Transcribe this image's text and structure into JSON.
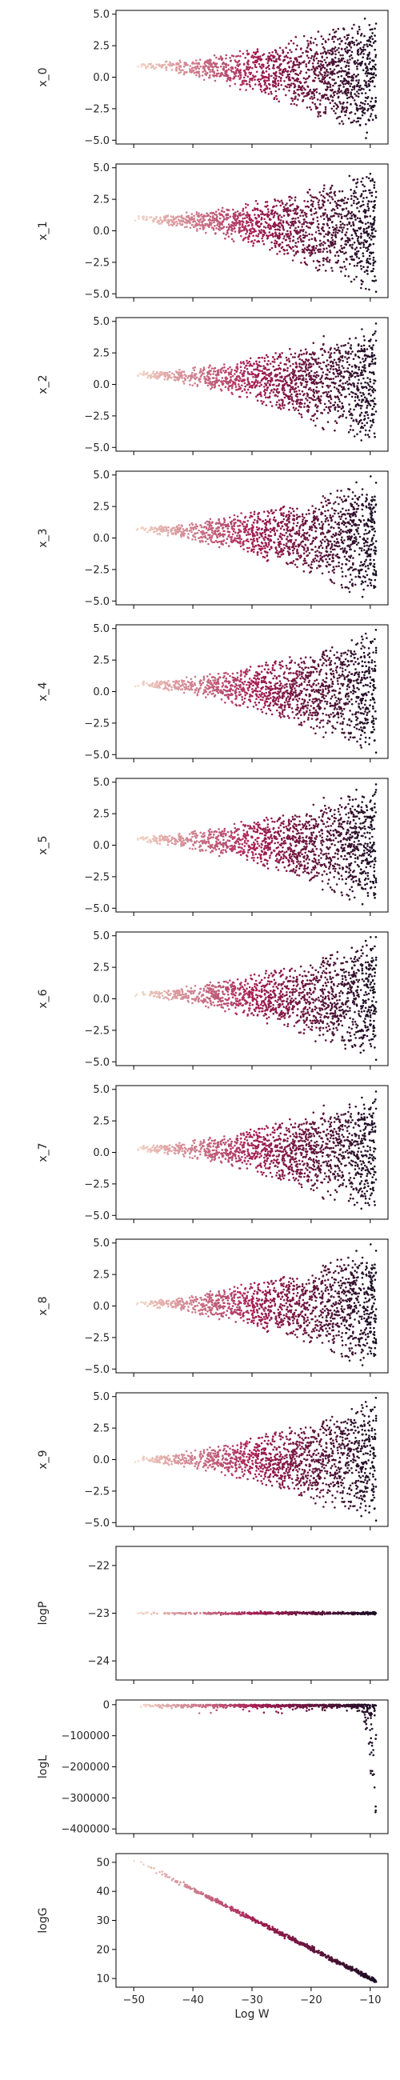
{
  "figure": {
    "shared_xlabel": "Log W"
  },
  "colors": {
    "axis": "#000000",
    "text": "#262626",
    "cmap_dark": "#1a0d25",
    "cmap_mid": "#a51d52",
    "cmap_light": "#f6ddc8"
  },
  "chart_data": [
    {
      "type": "scatter",
      "ylabel": "x_0",
      "ylim": [
        -5.3,
        5.3
      ],
      "yticks": [
        5.0,
        2.5,
        0.0,
        -2.5,
        -5.0
      ],
      "ytick_labels": [
        "5.0",
        "2.5",
        "0.0",
        "−2.5",
        "−5.0"
      ],
      "xlim": [
        -53,
        -7
      ],
      "xticks": [
        -50,
        -40,
        -30,
        -20,
        -10
      ],
      "shape": "funnel",
      "start": 1.0,
      "end_range": [
        -5.0,
        5.0
      ]
    },
    {
      "type": "scatter",
      "ylabel": "x_1",
      "ylim": [
        -5.3,
        5.3
      ],
      "yticks": [
        5.0,
        2.5,
        0.0,
        -2.5,
        -5.0
      ],
      "ytick_labels": [
        "5.0",
        "2.5",
        "0.0",
        "−2.5",
        "−5.0"
      ],
      "xlim": [
        -53,
        -7
      ],
      "xticks": [
        -50,
        -40,
        -30,
        -20,
        -10
      ],
      "shape": "funnel",
      "start": 1.0,
      "end_range": [
        -5.0,
        5.0
      ]
    },
    {
      "type": "scatter",
      "ylabel": "x_2",
      "ylim": [
        -5.3,
        5.3
      ],
      "yticks": [
        5.0,
        2.5,
        0.0,
        -2.5,
        -5.0
      ],
      "ytick_labels": [
        "5.0",
        "2.5",
        "0.0",
        "−2.5",
        "−5.0"
      ],
      "xlim": [
        -53,
        -7
      ],
      "xticks": [
        -50,
        -40,
        -30,
        -20,
        -10
      ],
      "shape": "funnel",
      "start": 0.8,
      "end_range": [
        -5.0,
        5.0
      ]
    },
    {
      "type": "scatter",
      "ylabel": "x_3",
      "ylim": [
        -5.3,
        5.3
      ],
      "yticks": [
        5.0,
        2.5,
        0.0,
        -2.5,
        -5.0
      ],
      "ytick_labels": [
        "5.0",
        "2.5",
        "0.0",
        "−2.5",
        "−5.0"
      ],
      "xlim": [
        -53,
        -7
      ],
      "xticks": [
        -50,
        -40,
        -30,
        -20,
        -10
      ],
      "shape": "funnel",
      "start": 0.7,
      "end_range": [
        -5.0,
        5.0
      ]
    },
    {
      "type": "scatter",
      "ylabel": "x_4",
      "ylim": [
        -5.3,
        5.3
      ],
      "yticks": [
        5.0,
        2.5,
        0.0,
        -2.5,
        -5.0
      ],
      "ytick_labels": [
        "5.0",
        "2.5",
        "0.0",
        "−2.5",
        "−5.0"
      ],
      "xlim": [
        -53,
        -7
      ],
      "xticks": [
        -50,
        -40,
        -30,
        -20,
        -10
      ],
      "shape": "funnel",
      "start": 0.6,
      "end_range": [
        -5.0,
        5.0
      ]
    },
    {
      "type": "scatter",
      "ylabel": "x_5",
      "ylim": [
        -5.3,
        5.3
      ],
      "yticks": [
        5.0,
        2.5,
        0.0,
        -2.5,
        -5.0
      ],
      "ytick_labels": [
        "5.0",
        "2.5",
        "0.0",
        "−2.5",
        "−5.0"
      ],
      "xlim": [
        -53,
        -7
      ],
      "xticks": [
        -50,
        -40,
        -30,
        -20,
        -10
      ],
      "shape": "funnel",
      "start": 0.5,
      "end_range": [
        -5.0,
        5.0
      ]
    },
    {
      "type": "scatter",
      "ylabel": "x_6",
      "ylim": [
        -5.3,
        5.3
      ],
      "yticks": [
        5.0,
        2.5,
        0.0,
        -2.5,
        -5.0
      ],
      "ytick_labels": [
        "5.0",
        "2.5",
        "0.0",
        "−2.5",
        "−5.0"
      ],
      "xlim": [
        -53,
        -7
      ],
      "xticks": [
        -50,
        -40,
        -30,
        -20,
        -10
      ],
      "shape": "funnel",
      "start": 0.4,
      "end_range": [
        -5.0,
        5.0
      ]
    },
    {
      "type": "scatter",
      "ylabel": "x_7",
      "ylim": [
        -5.3,
        5.3
      ],
      "yticks": [
        5.0,
        2.5,
        0.0,
        -2.5,
        -5.0
      ],
      "ytick_labels": [
        "5.0",
        "2.5",
        "0.0",
        "−2.5",
        "−5.0"
      ],
      "xlim": [
        -53,
        -7
      ],
      "xticks": [
        -50,
        -40,
        -30,
        -20,
        -10
      ],
      "shape": "funnel",
      "start": 0.3,
      "end_range": [
        -5.0,
        5.0
      ]
    },
    {
      "type": "scatter",
      "ylabel": "x_8",
      "ylim": [
        -5.3,
        5.3
      ],
      "yticks": [
        5.0,
        2.5,
        0.0,
        -2.5,
        -5.0
      ],
      "ytick_labels": [
        "5.0",
        "2.5",
        "0.0",
        "−2.5",
        "−5.0"
      ],
      "xlim": [
        -53,
        -7
      ],
      "xticks": [
        -50,
        -40,
        -30,
        -20,
        -10
      ],
      "shape": "funnel",
      "start": 0.2,
      "end_range": [
        -5.0,
        5.0
      ]
    },
    {
      "type": "scatter",
      "ylabel": "x_9",
      "ylim": [
        -5.3,
        5.3
      ],
      "yticks": [
        5.0,
        2.5,
        0.0,
        -2.5,
        -5.0
      ],
      "ytick_labels": [
        "5.0",
        "2.5",
        "0.0",
        "−2.5",
        "−5.0"
      ],
      "xlim": [
        -53,
        -7
      ],
      "xticks": [
        -50,
        -40,
        -30,
        -20,
        -10
      ],
      "shape": "funnel",
      "start": 0.0,
      "end_range": [
        -5.0,
        5.0
      ]
    },
    {
      "type": "scatter",
      "ylabel": "logP",
      "ylim": [
        -24.4,
        -21.6
      ],
      "yticks": [
        -22,
        -23,
        -24
      ],
      "ytick_labels": [
        "−22",
        "−23",
        "−24"
      ],
      "xlim": [
        -53,
        -7
      ],
      "xticks": [
        -50,
        -40,
        -30,
        -20,
        -10
      ],
      "shape": "flat",
      "value": -23
    },
    {
      "type": "scatter",
      "ylabel": "logL",
      "ylim": [
        -415000,
        15000
      ],
      "yticks": [
        0,
        -100000,
        -200000,
        -300000,
        -400000
      ],
      "ytick_labels": [
        "0",
        "−100000",
        "−200000",
        "−300000",
        "−400000"
      ],
      "xlim": [
        -53,
        -7
      ],
      "xticks": [
        -50,
        -40,
        -30,
        -20,
        -10
      ],
      "shape": "drop",
      "min": -400000
    },
    {
      "type": "scatter",
      "ylabel": "logG",
      "ylim": [
        7,
        53
      ],
      "yticks": [
        50,
        40,
        30,
        20,
        10
      ],
      "ytick_labels": [
        "50",
        "40",
        "30",
        "20",
        "10"
      ],
      "xlim": [
        -53,
        -7
      ],
      "xticks": [
        -50,
        -40,
        -30,
        -20,
        -10
      ],
      "xtick_labels": [
        "−50",
        "−40",
        "−30",
        "−20",
        "−10"
      ],
      "xlabel": "Log W",
      "shape": "line",
      "line": [
        [
          -50,
          51
        ],
        [
          -9,
          9
        ]
      ]
    }
  ]
}
